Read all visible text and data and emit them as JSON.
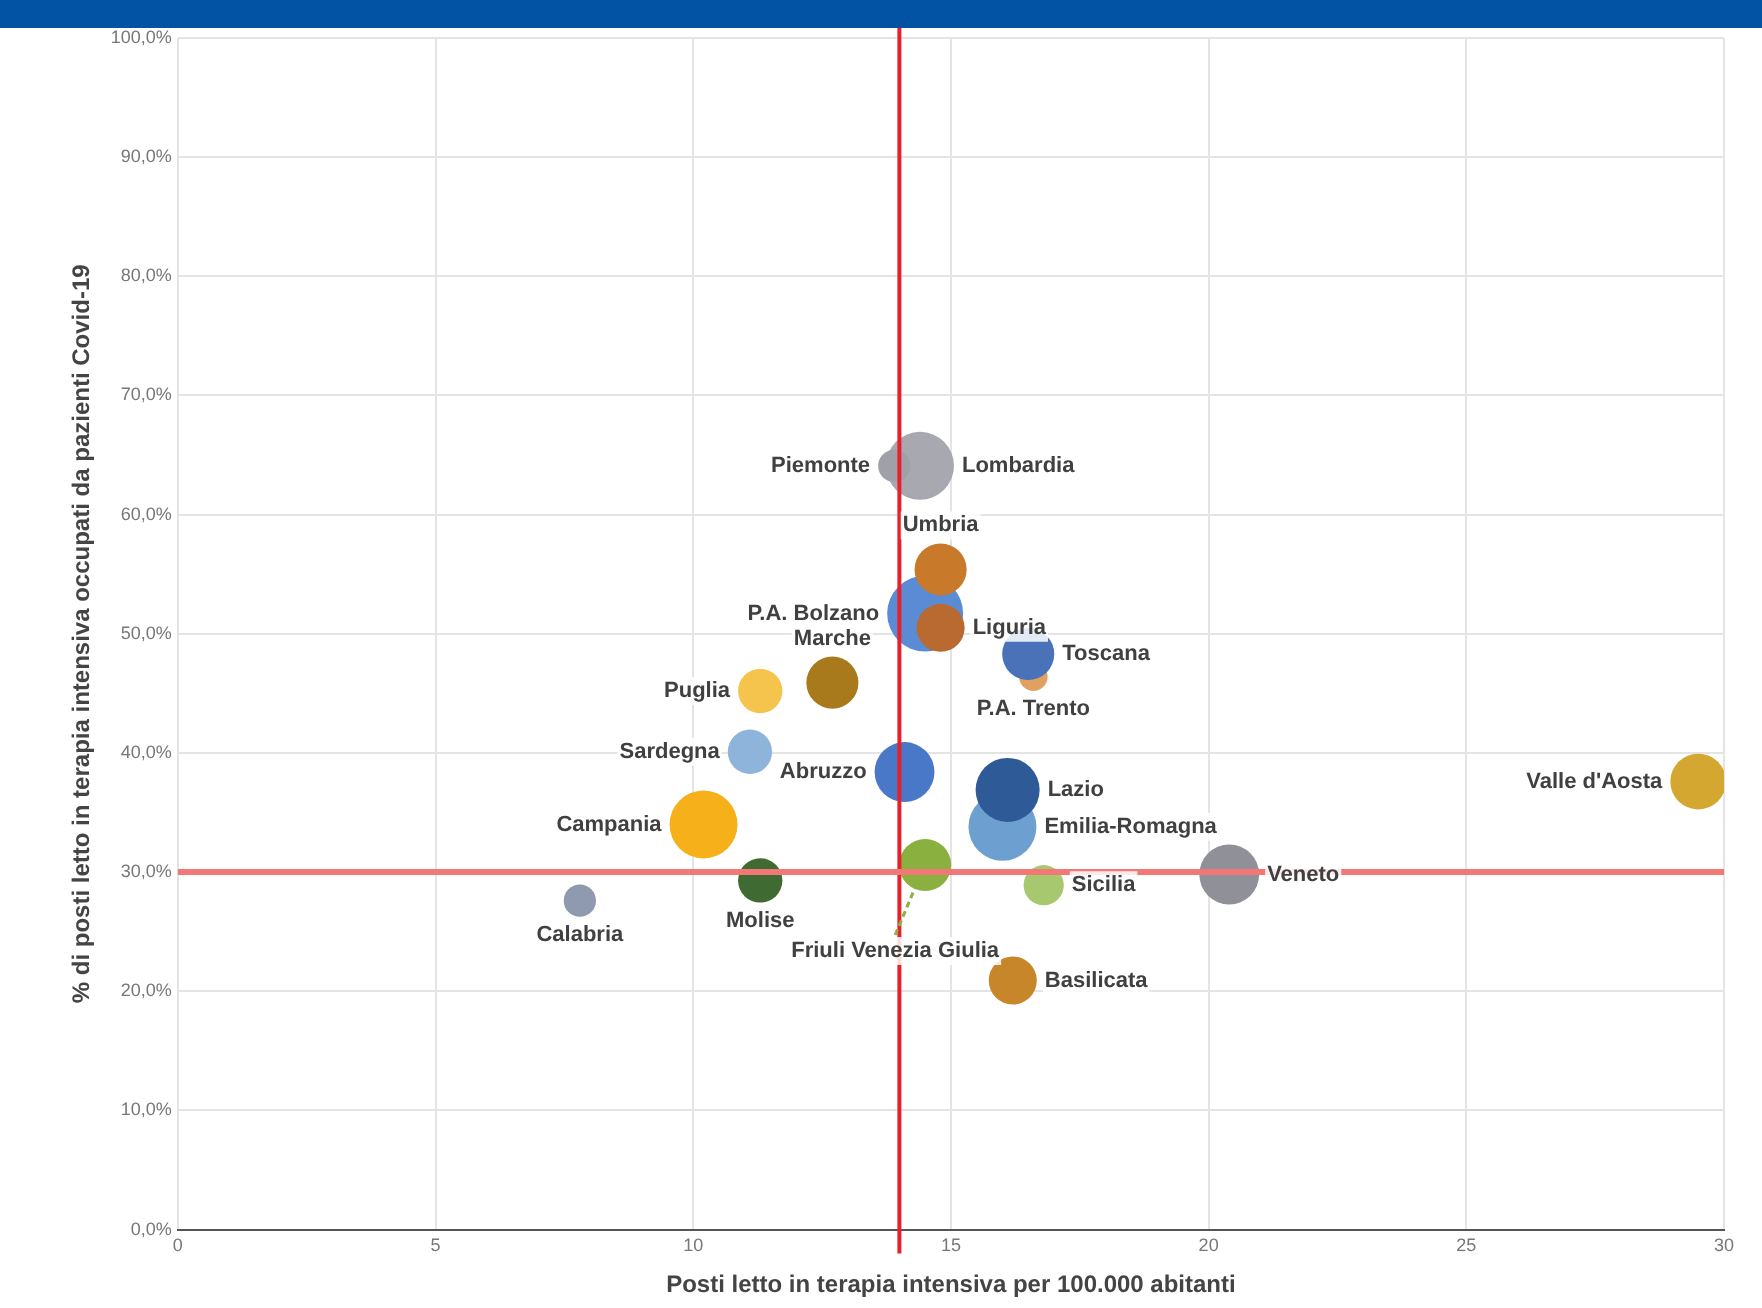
{
  "chart_data": {
    "type": "bubble",
    "xlabel": "Posti letto in terapia intensiva per 100.000 abitanti",
    "ylabel": "% di posti letto in terapia intensiva occupati da pazienti Covid-19",
    "xlim": [
      0,
      30
    ],
    "xticks": [
      0,
      5,
      10,
      15,
      20,
      25,
      30
    ],
    "ylim": [
      0,
      100
    ],
    "yticks": [
      {
        "value": 0,
        "label": "0,0%"
      },
      {
        "value": 10,
        "label": "10,0%"
      },
      {
        "value": 20,
        "label": "20,0%"
      },
      {
        "value": 30,
        "label": "30,0%"
      },
      {
        "value": 40,
        "label": "40,0%"
      },
      {
        "value": 50,
        "label": "50,0%"
      },
      {
        "value": 60,
        "label": "60,0%"
      },
      {
        "value": 70,
        "label": "70,0%"
      },
      {
        "value": 80,
        "label": "80,0%"
      },
      {
        "value": 90,
        "label": "90,0%"
      },
      {
        "value": 100,
        "label": "100,0%"
      }
    ],
    "grid": true,
    "legend": false,
    "ref_lines": [
      {
        "axis": "x",
        "value": 14,
        "color": "#e8202a"
      },
      {
        "axis": "y",
        "value": 30,
        "color": "#f27878"
      }
    ],
    "series": [
      {
        "name": "Piemonte",
        "color": "#a0a0a8",
        "x": [
          13.9
        ],
        "values": [
          64.1
        ],
        "sizes": [
          0.18
        ]
      },
      {
        "name": "Lombardia",
        "color": "#a8a8b0",
        "x": [
          14.4
        ],
        "values": [
          64.1
        ],
        "sizes": [
          0.8
        ]
      },
      {
        "name": "Umbria",
        "color": "#c87a2a",
        "x": [
          14.8
        ],
        "values": [
          55.4
        ],
        "sizes": [
          0.47
        ]
      },
      {
        "name": "Liguria",
        "color": "#b86a30",
        "x": [
          14.8
        ],
        "values": [
          50.5
        ],
        "sizes": [
          0.4
        ]
      },
      {
        "name": "P.A. Bolzano",
        "color": "#5b8bd4",
        "x": [
          14.5
        ],
        "values": [
          51.7
        ],
        "sizes": [
          1
        ]
      },
      {
        "name": "Toscana",
        "color": "#4a72b8",
        "x": [
          16.5
        ],
        "values": [
          48.3
        ],
        "sizes": [
          0.47
        ]
      },
      {
        "name": "P.A. Trento",
        "color": "#e0a060",
        "x": [
          16.6
        ],
        "values": [
          46.4
        ],
        "sizes": [
          0.14
        ]
      },
      {
        "name": "Marche",
        "color": "#a87a1c",
        "x": [
          12.7
        ],
        "values": [
          45.9
        ],
        "sizes": [
          0.47
        ]
      },
      {
        "name": "Puglia",
        "color": "#f5c44c",
        "x": [
          11.3
        ],
        "values": [
          45.2
        ],
        "sizes": [
          0.34
        ]
      },
      {
        "name": "Sardegna",
        "color": "#8fb4dc",
        "x": [
          11.1
        ],
        "values": [
          40.1
        ],
        "sizes": [
          0.34
        ]
      },
      {
        "name": "Abruzzo",
        "color": "#4a78c8",
        "x": [
          14.1
        ],
        "values": [
          38.4
        ],
        "sizes": [
          0.62
        ]
      },
      {
        "name": "Campania",
        "color": "#f5b01a",
        "x": [
          10.2
        ],
        "values": [
          34.0
        ],
        "sizes": [
          0.8
        ]
      },
      {
        "name": "Lazio",
        "color": "#2f5a98",
        "x": [
          16.1
        ],
        "values": [
          36.9
        ],
        "sizes": [
          0.71
        ]
      },
      {
        "name": "Emilia-Romagna",
        "color": "#6d9fd0",
        "x": [
          16.0
        ],
        "values": [
          33.8
        ],
        "sizes": [
          0.8
        ]
      },
      {
        "name": "Friuli Venezia Giulia",
        "color": "#8ab040",
        "x": [
          14.5
        ],
        "values": [
          30.6
        ],
        "sizes": [
          0.47
        ]
      },
      {
        "name": "Molise",
        "color": "#3f6b32",
        "x": [
          11.3
        ],
        "values": [
          29.3
        ],
        "sizes": [
          0.34
        ]
      },
      {
        "name": "Calabria",
        "color": "#8f99b0",
        "x": [
          7.8
        ],
        "values": [
          27.6
        ],
        "sizes": [
          0.18
        ]
      },
      {
        "name": "Sicilia",
        "color": "#a8c870",
        "x": [
          16.8
        ],
        "values": [
          28.9
        ],
        "sizes": [
          0.28
        ]
      },
      {
        "name": "Basilicata",
        "color": "#c8862a",
        "x": [
          16.2
        ],
        "values": [
          20.9
        ],
        "sizes": [
          0.4
        ]
      },
      {
        "name": "Veneto",
        "color": "#909098",
        "x": [
          20.4
        ],
        "values": [
          29.8
        ],
        "sizes": [
          0.62
        ]
      },
      {
        "name": "Valle d'Aosta",
        "color": "#d4a830",
        "x": [
          29.5
        ],
        "values": [
          37.6
        ],
        "sizes": [
          0.54
        ]
      }
    ]
  }
}
